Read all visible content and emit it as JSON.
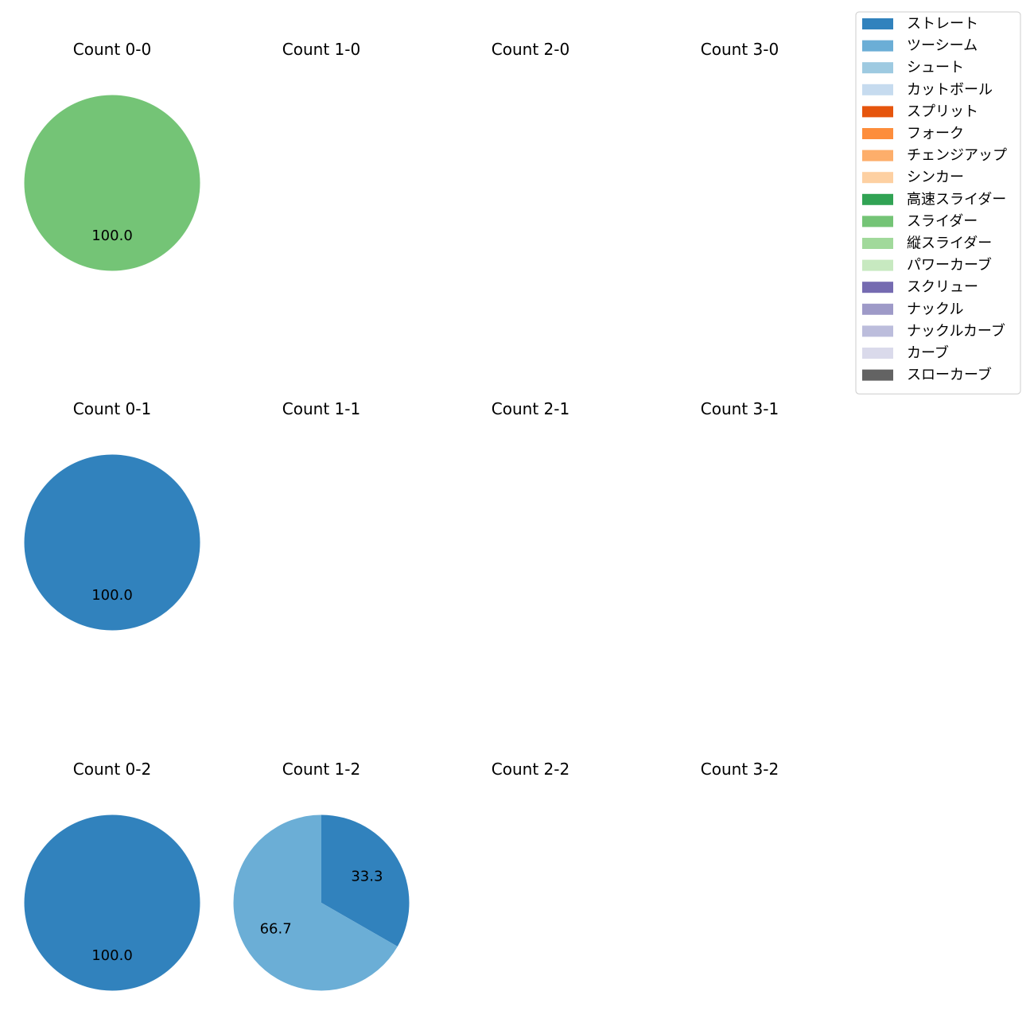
{
  "chart_data": {
    "type": "pie",
    "label_format": "percent",
    "pitch_types": [
      {
        "name": "ストレート",
        "color": "#3182bd"
      },
      {
        "name": "ツーシーム",
        "color": "#6baed6"
      },
      {
        "name": "シュート",
        "color": "#9ecae1"
      },
      {
        "name": "カットボール",
        "color": "#c6dbef"
      },
      {
        "name": "スプリット",
        "color": "#e6550d"
      },
      {
        "name": "フォーク",
        "color": "#fd8d3c"
      },
      {
        "name": "チェンジアップ",
        "color": "#fdae6b"
      },
      {
        "name": "シンカー",
        "color": "#fdd0a2"
      },
      {
        "name": "高速スライダー",
        "color": "#31a354"
      },
      {
        "name": "スライダー",
        "color": "#74c476"
      },
      {
        "name": "縦スライダー",
        "color": "#a1d99b"
      },
      {
        "name": "パワーカーブ",
        "color": "#c7e9c0"
      },
      {
        "name": "スクリュー",
        "color": "#756bb1"
      },
      {
        "name": "ナックル",
        "color": "#9e9ac8"
      },
      {
        "name": "ナックルカーブ",
        "color": "#bcbddc"
      },
      {
        "name": "カーブ",
        "color": "#dadaeb"
      },
      {
        "name": "スローカーブ",
        "color": "#636363"
      }
    ],
    "panels": [
      {
        "title": "Count 0-0",
        "slices": [
          {
            "pitch": "スライダー",
            "value": 100.0
          }
        ]
      },
      {
        "title": "Count 1-0",
        "slices": []
      },
      {
        "title": "Count 2-0",
        "slices": []
      },
      {
        "title": "Count 3-0",
        "slices": []
      },
      {
        "title": "Count 0-1",
        "slices": [
          {
            "pitch": "ストレート",
            "value": 100.0
          }
        ]
      },
      {
        "title": "Count 1-1",
        "slices": []
      },
      {
        "title": "Count 2-1",
        "slices": []
      },
      {
        "title": "Count 3-1",
        "slices": []
      },
      {
        "title": "Count 0-2",
        "slices": [
          {
            "pitch": "ストレート",
            "value": 100.0
          }
        ]
      },
      {
        "title": "Count 1-2",
        "slices": [
          {
            "pitch": "ストレート",
            "value": 33.3
          },
          {
            "pitch": "ツーシーム",
            "value": 66.7
          }
        ]
      },
      {
        "title": "Count 2-2",
        "slices": []
      },
      {
        "title": "Count 3-2",
        "slices": []
      }
    ]
  }
}
